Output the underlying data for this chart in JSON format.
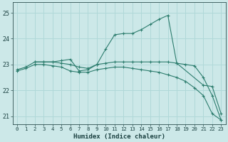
{
  "xlabel": "Humidex (Indice chaleur)",
  "bg_color": "#cce8e8",
  "grid_color": "#b0d8d8",
  "line_color": "#2d7d6e",
  "xlim": [
    -0.5,
    23.5
  ],
  "ylim": [
    20.7,
    25.4
  ],
  "yticks": [
    21,
    22,
    23,
    24,
    25
  ],
  "xticks": [
    0,
    1,
    2,
    3,
    4,
    5,
    6,
    7,
    8,
    9,
    10,
    11,
    12,
    13,
    14,
    15,
    16,
    17,
    18,
    19,
    20,
    21,
    22,
    23
  ],
  "series": [
    {
      "x": [
        2,
        3,
        4,
        5,
        6,
        7,
        8,
        9,
        10,
        11,
        12,
        13,
        14,
        15,
        16,
        17,
        18,
        21,
        22,
        23
      ],
      "y": [
        23.1,
        23.1,
        23.1,
        23.15,
        23.2,
        22.75,
        22.8,
        23.0,
        23.6,
        24.15,
        24.2,
        24.2,
        24.35,
        24.55,
        24.75,
        24.9,
        23.05,
        22.2,
        22.15,
        21.1
      ]
    },
    {
      "x": [
        0,
        1,
        2,
        3,
        4,
        5,
        6,
        7,
        8,
        9,
        10,
        11,
        12,
        13,
        14,
        15,
        16,
        17,
        18,
        19,
        20,
        21,
        22,
        23
      ],
      "y": [
        22.8,
        22.9,
        23.1,
        23.1,
        23.1,
        23.05,
        23.0,
        22.9,
        22.85,
        23.0,
        23.05,
        23.1,
        23.1,
        23.1,
        23.1,
        23.1,
        23.1,
        23.1,
        23.05,
        23.0,
        22.95,
        22.5,
        21.8,
        20.85
      ]
    },
    {
      "x": [
        0,
        1,
        2,
        3,
        4,
        5,
        6,
        7,
        8,
        9,
        10,
        11,
        12,
        13,
        14,
        15,
        16,
        17,
        18,
        19,
        20,
        21,
        22,
        23
      ],
      "y": [
        22.75,
        22.85,
        23.0,
        23.0,
        22.95,
        22.9,
        22.75,
        22.7,
        22.7,
        22.8,
        22.85,
        22.9,
        22.9,
        22.85,
        22.8,
        22.75,
        22.7,
        22.6,
        22.5,
        22.35,
        22.1,
        21.8,
        21.1,
        20.85
      ]
    }
  ]
}
